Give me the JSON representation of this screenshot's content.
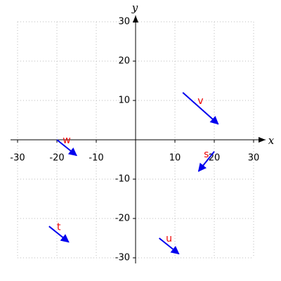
{
  "chart_data": {
    "type": "quiver",
    "xlabel": "x",
    "ylabel": "y",
    "xlim": [
      -30,
      30
    ],
    "ylim": [
      -30,
      30
    ],
    "xticks": [
      -30,
      -20,
      -10,
      10,
      20,
      30
    ],
    "yticks": [
      -30,
      -20,
      -10,
      10,
      20,
      30
    ],
    "grid": true,
    "color": "#0000ee",
    "label_color": "#ee0000",
    "vectors": [
      {
        "label": "v",
        "x": 12,
        "y": 12,
        "dx": 9,
        "dy": -8
      },
      {
        "label": "w",
        "x": -20,
        "y": 0,
        "dx": 5,
        "dy": -4
      },
      {
        "label": "s",
        "x": 20,
        "y": -3,
        "dx": -4,
        "dy": -5
      },
      {
        "label": "t",
        "x": -22,
        "y": -22,
        "dx": 5,
        "dy": -4
      },
      {
        "label": "u",
        "x": 6,
        "y": -25,
        "dx": 5,
        "dy": -4
      }
    ]
  }
}
